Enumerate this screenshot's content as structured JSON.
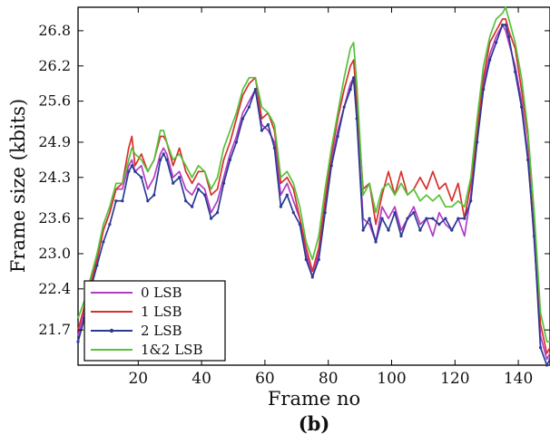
{
  "chart_data": {
    "type": "line",
    "panel_label": "(b)",
    "xlabel": "Frame no",
    "ylabel": "Frame size (kbits)",
    "xlim": [
      1,
      150
    ],
    "ylim": [
      21.1,
      27.2
    ],
    "x_ticks": [
      20,
      40,
      60,
      80,
      100,
      120,
      140
    ],
    "y_ticks": [
      21.7,
      22.4,
      23.0,
      23.6,
      24.3,
      24.9,
      25.6,
      26.2,
      26.8
    ],
    "y_tick_labels": [
      "21.7",
      "22.4",
      "23.0",
      "23.6",
      "24.3",
      "24.9",
      "25.6",
      "26.2",
      "26.8"
    ],
    "grid": false,
    "legend_position": "bottom-left",
    "x": [
      1,
      3,
      5,
      7,
      9,
      11,
      13,
      15,
      17,
      18,
      19,
      21,
      23,
      25,
      27,
      28,
      29,
      31,
      33,
      35,
      37,
      39,
      41,
      43,
      45,
      47,
      49,
      51,
      53,
      55,
      57,
      59,
      61,
      63,
      65,
      67,
      69,
      71,
      73,
      75,
      77,
      79,
      81,
      83,
      85,
      87,
      88,
      89,
      91,
      93,
      95,
      97,
      99,
      101,
      103,
      105,
      107,
      109,
      111,
      113,
      115,
      117,
      119,
      121,
      123,
      125,
      127,
      129,
      131,
      133,
      135,
      136,
      137,
      139,
      141,
      143,
      145,
      147,
      149,
      150
    ],
    "series": [
      {
        "name": "0 LSB",
        "color": "#b23cc6",
        "marker": "none",
        "values": [
          21.6,
          22.0,
          22.5,
          22.9,
          23.4,
          23.7,
          24.1,
          24.1,
          24.5,
          24.6,
          24.4,
          24.5,
          24.1,
          24.3,
          24.7,
          24.8,
          24.7,
          24.3,
          24.4,
          24.1,
          24.0,
          24.2,
          24.1,
          23.7,
          23.9,
          24.3,
          24.7,
          25.0,
          25.4,
          25.6,
          25.8,
          25.2,
          25.1,
          24.9,
          24.0,
          24.2,
          23.9,
          23.6,
          23.0,
          22.6,
          23.0,
          23.8,
          24.6,
          25.1,
          25.5,
          25.9,
          26.0,
          25.4,
          23.6,
          23.5,
          23.2,
          23.8,
          23.6,
          23.8,
          23.4,
          23.6,
          23.8,
          23.5,
          23.6,
          23.3,
          23.7,
          23.5,
          23.4,
          23.6,
          23.3,
          24.0,
          25.0,
          25.9,
          26.4,
          26.7,
          26.9,
          26.8,
          26.6,
          26.2,
          25.6,
          24.7,
          23.2,
          21.6,
          21.2,
          21.3
        ]
      },
      {
        "name": "1 LSB",
        "color": "#d9302c",
        "marker": "none",
        "values": [
          21.7,
          22.1,
          22.5,
          22.9,
          23.4,
          23.7,
          24.1,
          24.2,
          24.8,
          25.0,
          24.5,
          24.7,
          24.4,
          24.6,
          25.0,
          25.0,
          24.9,
          24.5,
          24.8,
          24.4,
          24.2,
          24.4,
          24.4,
          24.0,
          24.1,
          24.6,
          24.9,
          25.3,
          25.7,
          25.9,
          26.0,
          25.3,
          25.4,
          25.1,
          24.2,
          24.3,
          24.1,
          23.6,
          23.1,
          22.7,
          23.1,
          23.9,
          24.7,
          25.3,
          25.8,
          26.2,
          26.3,
          25.6,
          24.1,
          24.2,
          23.5,
          24.0,
          24.4,
          24.0,
          24.4,
          24.0,
          24.1,
          24.3,
          24.1,
          24.4,
          24.1,
          24.2,
          23.9,
          24.2,
          23.6,
          24.2,
          25.1,
          26.0,
          26.6,
          26.8,
          27.0,
          27.0,
          26.8,
          26.5,
          25.8,
          25.0,
          23.6,
          21.8,
          21.3,
          21.4
        ]
      },
      {
        "name": "2 LSB",
        "color": "#2b3a94",
        "marker": "dot",
        "values": [
          21.5,
          21.9,
          22.4,
          22.8,
          23.2,
          23.5,
          23.9,
          23.9,
          24.4,
          24.5,
          24.4,
          24.3,
          23.9,
          24.0,
          24.6,
          24.7,
          24.6,
          24.2,
          24.3,
          23.9,
          23.8,
          24.1,
          24.0,
          23.6,
          23.7,
          24.2,
          24.6,
          24.9,
          25.3,
          25.5,
          25.8,
          25.1,
          25.2,
          24.8,
          23.8,
          24.0,
          23.7,
          23.5,
          22.9,
          22.6,
          22.9,
          23.7,
          24.5,
          25.0,
          25.5,
          25.8,
          26.0,
          25.3,
          23.4,
          23.6,
          23.2,
          23.6,
          23.4,
          23.7,
          23.3,
          23.6,
          23.7,
          23.4,
          23.6,
          23.6,
          23.5,
          23.6,
          23.4,
          23.6,
          23.6,
          23.9,
          24.9,
          25.8,
          26.3,
          26.6,
          26.9,
          26.9,
          26.7,
          26.1,
          25.5,
          24.6,
          23.3,
          21.4,
          21.1,
          21.2
        ]
      },
      {
        "name": "1&2 LSB",
        "color": "#55c23a",
        "marker": "none",
        "values": [
          21.9,
          22.2,
          22.6,
          23.0,
          23.5,
          23.8,
          24.2,
          24.2,
          24.6,
          24.8,
          24.7,
          24.6,
          24.4,
          24.6,
          25.1,
          25.1,
          24.9,
          24.6,
          24.7,
          24.5,
          24.3,
          24.5,
          24.4,
          24.1,
          24.3,
          24.8,
          25.1,
          25.4,
          25.8,
          26.0,
          26.0,
          25.5,
          25.4,
          25.2,
          24.3,
          24.4,
          24.2,
          23.8,
          23.2,
          22.9,
          23.3,
          24.1,
          24.8,
          25.4,
          26.0,
          26.5,
          26.6,
          25.9,
          24.0,
          24.2,
          23.7,
          24.1,
          24.2,
          24.0,
          24.2,
          24.0,
          24.1,
          23.9,
          24.0,
          23.9,
          24.0,
          23.8,
          23.8,
          23.9,
          23.8,
          24.3,
          25.3,
          26.2,
          26.7,
          27.0,
          27.1,
          27.2,
          27.0,
          26.6,
          26.0,
          25.1,
          23.7,
          22.0,
          21.5,
          21.5
        ]
      }
    ]
  }
}
